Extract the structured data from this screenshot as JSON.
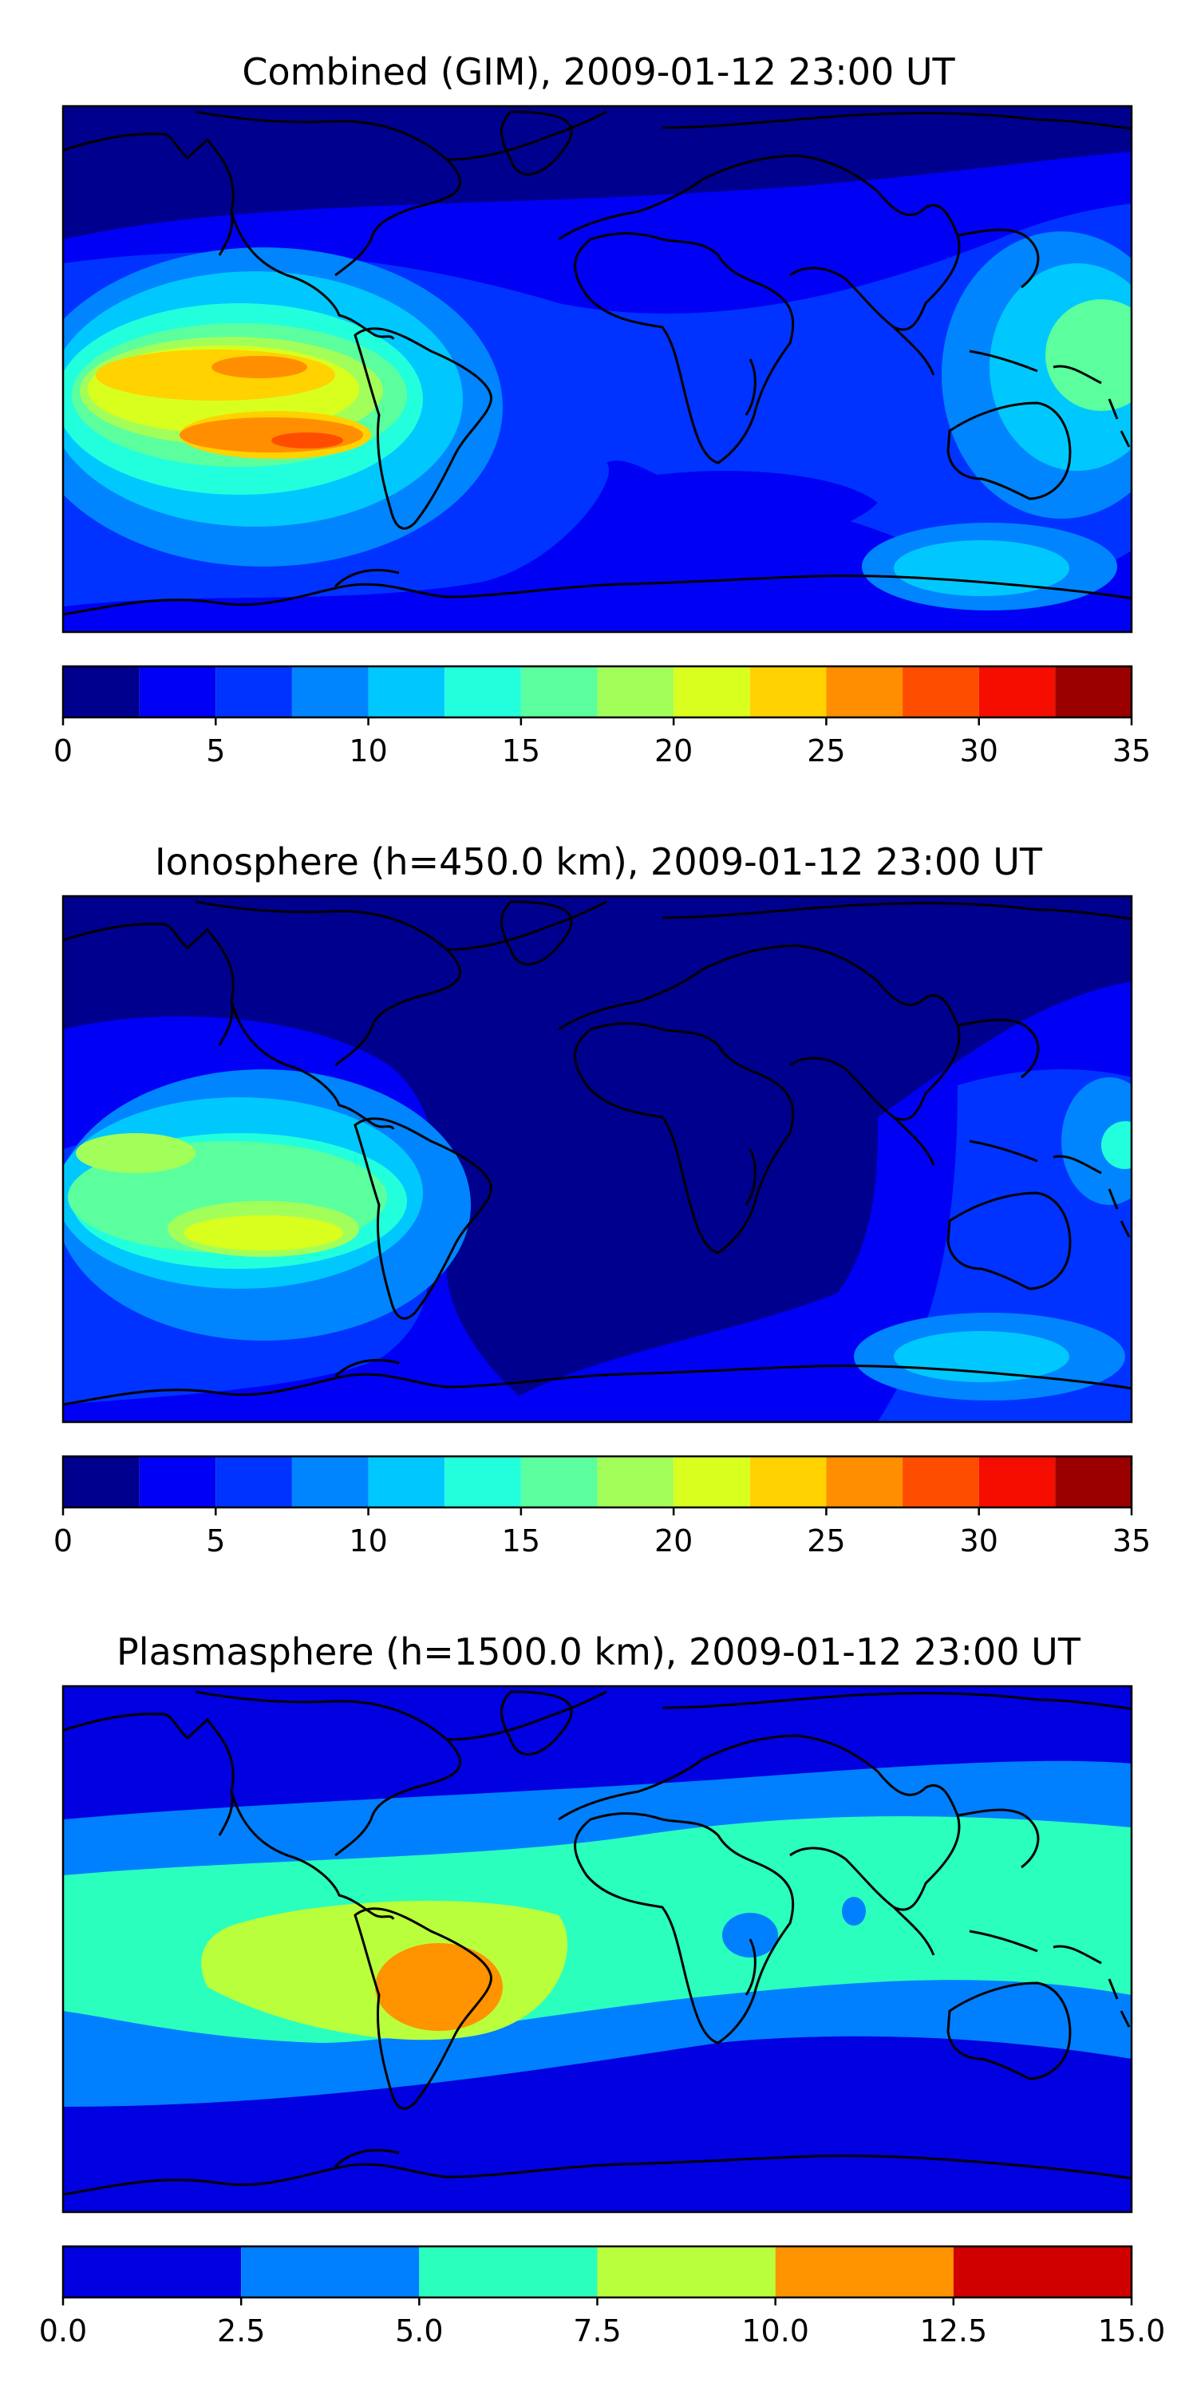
{
  "panels": [
    {
      "title": "Combined (GIM), 2009-01-12 23:00 UT",
      "colorbar": {
        "ticks": [
          "0",
          "5",
          "10",
          "15",
          "20",
          "25",
          "30",
          "35"
        ],
        "range": [
          0,
          35
        ],
        "levels": [
          0,
          2.5,
          5,
          7.5,
          10,
          12.5,
          15,
          17.5,
          20,
          22.5,
          25,
          27.5,
          30,
          32.5,
          35
        ],
        "colors": [
          "#00008f",
          "#0000f5",
          "#0033ff",
          "#0085ff",
          "#00c8ff",
          "#22ffdd",
          "#5bff9e",
          "#a2ff5a",
          "#d9ff1f",
          "#ffd200",
          "#ff8f00",
          "#ff4d00",
          "#f50d00",
          "#9b0000"
        ]
      }
    },
    {
      "title": "Ionosphere  (h=450.0 km), 2009-01-12 23:00 UT",
      "colorbar": {
        "ticks": [
          "0",
          "5",
          "10",
          "15",
          "20",
          "25",
          "30",
          "35"
        ],
        "range": [
          0,
          35
        ],
        "levels": [
          0,
          2.5,
          5,
          7.5,
          10,
          12.5,
          15,
          17.5,
          20,
          22.5,
          25,
          27.5,
          30,
          32.5,
          35
        ],
        "colors": [
          "#00008f",
          "#0000f5",
          "#0033ff",
          "#0085ff",
          "#00c8ff",
          "#22ffdd",
          "#5bff9e",
          "#a2ff5a",
          "#d9ff1f",
          "#ffd200",
          "#ff8f00",
          "#ff4d00",
          "#f50d00",
          "#9b0000"
        ]
      }
    },
    {
      "title": "Plasmasphere (h=1500.0 km), 2009-01-12 23:00 UT",
      "colorbar": {
        "ticks": [
          "0.0",
          "2.5",
          "5.0",
          "7.5",
          "10.0",
          "12.5",
          "15.0"
        ],
        "range": [
          0,
          15
        ],
        "levels": [
          0,
          2.5,
          5,
          7.5,
          10,
          12.5,
          15
        ],
        "colors": [
          "#0000e0",
          "#0080ff",
          "#2affbd",
          "#b9ff3c",
          "#ff9300",
          "#d00000"
        ]
      }
    }
  ]
}
